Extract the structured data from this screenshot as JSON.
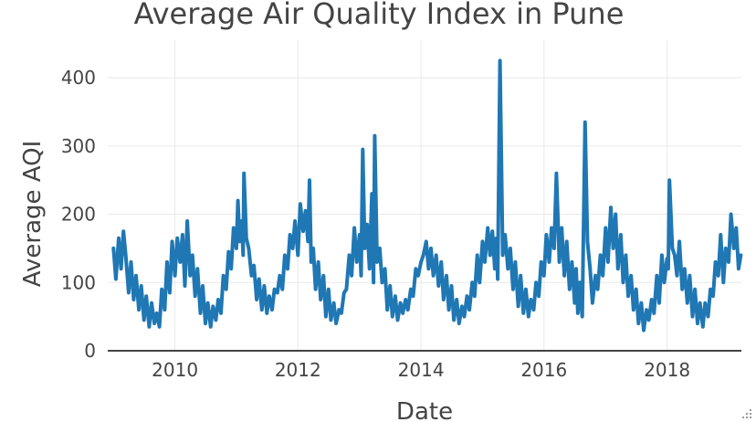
{
  "chart_data": {
    "type": "line",
    "title": "Average Air Quality Index in Pune",
    "xlabel": "Date",
    "ylabel": "Average AQI",
    "xlim": [
      "2008-11-28",
      "2019-03-18"
    ],
    "ylim": [
      0,
      455
    ],
    "x_ticks": [
      2010,
      2012,
      2014,
      2016,
      2018
    ],
    "y_ticks": [
      0,
      100,
      200,
      300,
      400
    ],
    "grid": true,
    "legend": "none",
    "series": [
      {
        "color": "#1f77b4",
        "x": [
          "2009-01-01",
          "2009-01-15",
          "2009-02-01",
          "2009-02-15",
          "2009-03-01",
          "2009-03-15",
          "2009-04-01",
          "2009-04-15",
          "2009-05-01",
          "2009-05-15",
          "2009-06-01",
          "2009-06-15",
          "2009-07-01",
          "2009-07-15",
          "2009-08-01",
          "2009-08-15",
          "2009-09-01",
          "2009-09-15",
          "2009-10-01",
          "2009-10-15",
          "2009-11-01",
          "2009-11-15",
          "2009-12-01",
          "2009-12-15",
          "2010-01-01",
          "2010-01-15",
          "2010-02-01",
          "2010-02-15",
          "2010-03-01",
          "2010-03-15",
          "2010-04-01",
          "2010-04-15",
          "2010-05-01",
          "2010-05-15",
          "2010-06-01",
          "2010-06-15",
          "2010-07-01",
          "2010-07-15",
          "2010-08-01",
          "2010-08-15",
          "2010-09-01",
          "2010-09-15",
          "2010-10-01",
          "2010-10-15",
          "2010-11-01",
          "2010-11-15",
          "2010-12-01",
          "2010-12-15",
          "2011-01-01",
          "2011-01-10",
          "2011-01-20",
          "2011-02-01",
          "2011-02-10",
          "2011-02-15",
          "2011-03-01",
          "2011-03-15",
          "2011-04-01",
          "2011-04-15",
          "2011-05-01",
          "2011-05-15",
          "2011-06-01",
          "2011-06-15",
          "2011-07-01",
          "2011-07-15",
          "2011-08-01",
          "2011-08-15",
          "2011-09-01",
          "2011-09-15",
          "2011-10-01",
          "2011-10-15",
          "2011-11-01",
          "2011-11-15",
          "2011-12-01",
          "2011-12-15",
          "2012-01-01",
          "2012-01-15",
          "2012-02-01",
          "2012-02-15",
          "2012-03-01",
          "2012-03-10",
          "2012-03-20",
          "2012-04-01",
          "2012-04-15",
          "2012-05-01",
          "2012-05-15",
          "2012-06-01",
          "2012-06-15",
          "2012-07-01",
          "2012-07-15",
          "2012-08-01",
          "2012-08-15",
          "2012-09-01",
          "2012-09-15",
          "2012-10-01",
          "2012-10-15",
          "2012-11-01",
          "2012-11-15",
          "2012-12-01",
          "2012-12-15",
          "2013-01-01",
          "2013-01-10",
          "2013-01-20",
          "2013-02-01",
          "2013-02-15",
          "2013-03-01",
          "2013-03-15",
          "2013-03-25",
          "2013-04-01",
          "2013-04-15",
          "2013-05-01",
          "2013-05-15",
          "2013-06-01",
          "2013-06-15",
          "2013-07-01",
          "2013-07-15",
          "2013-08-01",
          "2013-08-15",
          "2013-09-01",
          "2013-09-15",
          "2013-10-01",
          "2013-10-15",
          "2013-11-01",
          "2013-11-15",
          "2013-12-01",
          "2013-12-15",
          "2014-01-01",
          "2014-01-15",
          "2014-02-01",
          "2014-02-15",
          "2014-03-01",
          "2014-03-15",
          "2014-04-01",
          "2014-04-15",
          "2014-05-01",
          "2014-05-15",
          "2014-06-01",
          "2014-06-15",
          "2014-07-01",
          "2014-07-15",
          "2014-08-01",
          "2014-08-15",
          "2014-09-01",
          "2014-09-15",
          "2014-10-01",
          "2014-10-15",
          "2014-11-01",
          "2014-11-15",
          "2014-12-01",
          "2014-12-15",
          "2015-01-01",
          "2015-01-15",
          "2015-02-01",
          "2015-02-15",
          "2015-03-01",
          "2015-03-15",
          "2015-03-25",
          "2015-04-01",
          "2015-04-15",
          "2015-05-01",
          "2015-05-15",
          "2015-06-01",
          "2015-06-15",
          "2015-07-01",
          "2015-07-15",
          "2015-08-01",
          "2015-08-15",
          "2015-09-01",
          "2015-09-15",
          "2015-10-01",
          "2015-10-15",
          "2015-11-01",
          "2015-11-15",
          "2015-12-01",
          "2015-12-15",
          "2016-01-01",
          "2016-01-15",
          "2016-02-01",
          "2016-02-15",
          "2016-03-01",
          "2016-03-15",
          "2016-04-01",
          "2016-04-15",
          "2016-05-01",
          "2016-05-15",
          "2016-06-01",
          "2016-06-15",
          "2016-07-01",
          "2016-07-10",
          "2016-07-20",
          "2016-08-01",
          "2016-08-15",
          "2016-09-01",
          "2016-09-15",
          "2016-10-01",
          "2016-10-15",
          "2016-11-01",
          "2016-11-15",
          "2016-12-01",
          "2016-12-15",
          "2017-01-01",
          "2017-01-15",
          "2017-02-01",
          "2017-02-15",
          "2017-03-01",
          "2017-03-15",
          "2017-04-01",
          "2017-04-15",
          "2017-05-01",
          "2017-05-15",
          "2017-06-01",
          "2017-06-15",
          "2017-07-01",
          "2017-07-15",
          "2017-08-01",
          "2017-08-15",
          "2017-09-01",
          "2017-09-15",
          "2017-10-01",
          "2017-10-15",
          "2017-11-01",
          "2017-11-15",
          "2017-12-01",
          "2017-12-15",
          "2018-01-01",
          "2018-01-08",
          "2018-01-15",
          "2018-02-01",
          "2018-02-15",
          "2018-03-01",
          "2018-03-15",
          "2018-04-01",
          "2018-04-15",
          "2018-05-01",
          "2018-05-15",
          "2018-06-01",
          "2018-06-15",
          "2018-07-01",
          "2018-07-15",
          "2018-08-01",
          "2018-08-15",
          "2018-09-01",
          "2018-09-15",
          "2018-10-01",
          "2018-10-15",
          "2018-11-01",
          "2018-11-15",
          "2018-12-01",
          "2018-12-15",
          "2019-01-01",
          "2019-01-15",
          "2019-02-01",
          "2019-02-15",
          "2019-03-01",
          "2019-03-15"
        ],
        "y": [
          150,
          105,
          165,
          120,
          175,
          140,
          85,
          130,
          75,
          110,
          60,
          95,
          45,
          80,
          35,
          70,
          40,
          55,
          35,
          90,
          60,
          130,
          85,
          160,
          110,
          165,
          130,
          170,
          95,
          190,
          110,
          140,
          80,
          120,
          55,
          95,
          40,
          70,
          35,
          65,
          45,
          75,
          55,
          110,
          90,
          145,
          120,
          180,
          150,
          220,
          160,
          190,
          140,
          260,
          165,
          150,
          110,
          125,
          75,
          105,
          60,
          95,
          55,
          80,
          60,
          90,
          85,
          110,
          90,
          140,
          120,
          170,
          150,
          190,
          140,
          215,
          175,
          205,
          160,
          250,
          130,
          150,
          90,
          130,
          75,
          110,
          50,
          90,
          45,
          70,
          40,
          60,
          55,
          85,
          90,
          140,
          110,
          180,
          130,
          170,
          110,
          295,
          150,
          185,
          120,
          230,
          100,
          315,
          130,
          150,
          100,
          120,
          60,
          95,
          50,
          80,
          45,
          70,
          55,
          75,
          60,
          90,
          80,
          120,
          110,
          130,
          140,
          160,
          120,
          150,
          110,
          140,
          95,
          130,
          75,
          110,
          60,
          95,
          45,
          75,
          40,
          65,
          50,
          80,
          60,
          100,
          80,
          140,
          100,
          160,
          130,
          180,
          140,
          175,
          120,
          165,
          105,
          425,
          140,
          170,
          120,
          150,
          90,
          130,
          65,
          110,
          55,
          90,
          50,
          75,
          60,
          100,
          80,
          130,
          110,
          170,
          130,
          180,
          150,
          260,
          130,
          180,
          110,
          160,
          90,
          130,
          70,
          120,
          55,
          100,
          50,
          335,
          160,
          120,
          70,
          110,
          90,
          140,
          110,
          180,
          130,
          210,
          150,
          200,
          120,
          170,
          100,
          140,
          80,
          110,
          60,
          90,
          40,
          70,
          30,
          60,
          45,
          75,
          55,
          110,
          70,
          140,
          100,
          135,
          120,
          250,
          150,
          140,
          110,
          160,
          90,
          120,
          70,
          110,
          50,
          90,
          40,
          70,
          35,
          70,
          50,
          90,
          80,
          130,
          110,
          170,
          100,
          150,
          130,
          200,
          150,
          180,
          120,
          140
        ]
      }
    ]
  }
}
